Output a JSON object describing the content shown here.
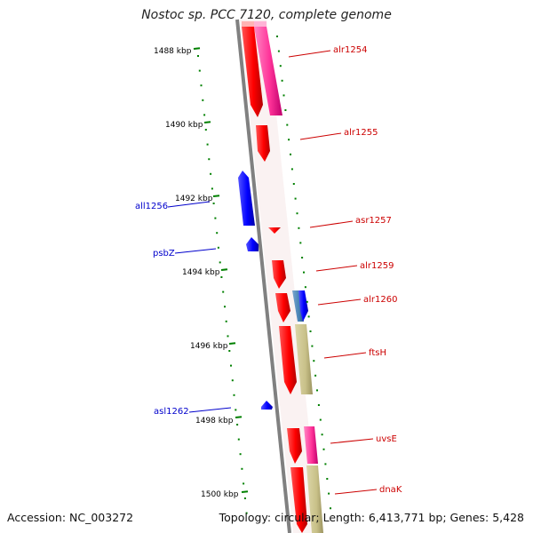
{
  "title": "Nostoc sp. PCC 7120, complete genome",
  "footer": {
    "accession": "Accession: NC_003272",
    "topology": "Topology: circular; Length: 6,413,771 bp; Genes: 5,428"
  },
  "colors": {
    "forward_gene": "#ff0000",
    "reverse_gene": "#0000ff",
    "forward_label": "#cc0000",
    "reverse_label": "#0000cc",
    "ticks": "#008000",
    "backbone": "#808080",
    "pink_feature": "#ff3399",
    "steelblue_feature": "#4682b4",
    "khaki_feature": "#c8c088"
  },
  "scale_labels": [
    "1488 kbp",
    "1490 kbp",
    "1492 kbp",
    "1494 kbp",
    "1496 kbp",
    "1498 kbp",
    "1500 kbp"
  ],
  "forward_genes": [
    {
      "name": "alr1254"
    },
    {
      "name": "alr1255"
    },
    {
      "name": "asr1257"
    },
    {
      "name": "alr1259"
    },
    {
      "name": "alr1260"
    },
    {
      "name": "ftsH"
    },
    {
      "name": "uvsE"
    },
    {
      "name": "dnaK"
    }
  ],
  "reverse_genes": [
    {
      "name": "all1256"
    },
    {
      "name": "psbZ"
    },
    {
      "name": "asl1262"
    }
  ]
}
